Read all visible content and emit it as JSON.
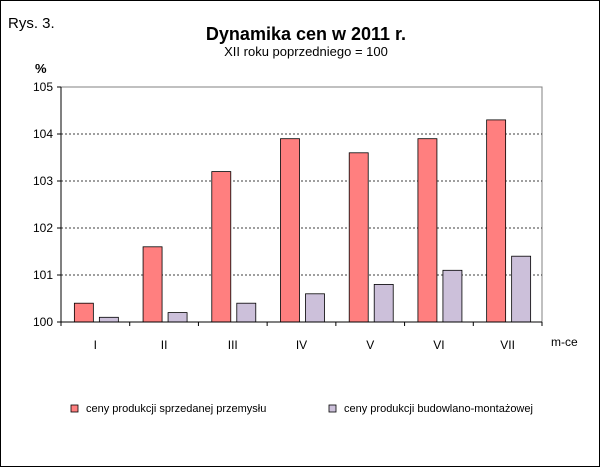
{
  "figure_label": "Rys. 3.",
  "chart_data": {
    "type": "bar",
    "title": "Dynamika cen w 2011 r.",
    "subtitle": "XII roku poprzedniego = 100",
    "ylabel": "%",
    "xlabel": "m-ce",
    "ylim": [
      100,
      105
    ],
    "yticks": [
      "100",
      "101",
      "102",
      "103",
      "104",
      "105"
    ],
    "grid": "horizontal-dotted",
    "legend_position": "bottom",
    "categories": [
      "I",
      "II",
      "III",
      "IV",
      "V",
      "VI",
      "VII"
    ],
    "series": [
      {
        "name": "ceny produkcji sprzedanej przemysłu",
        "color": "#ff7f7f",
        "values": [
          100.4,
          101.6,
          103.2,
          103.9,
          103.6,
          103.9,
          104.3
        ]
      },
      {
        "name": "ceny produkcji budowlano-montażowej",
        "color": "#ccc0da",
        "values": [
          100.1,
          100.2,
          100.4,
          100.6,
          100.8,
          101.1,
          101.4
        ]
      }
    ]
  }
}
